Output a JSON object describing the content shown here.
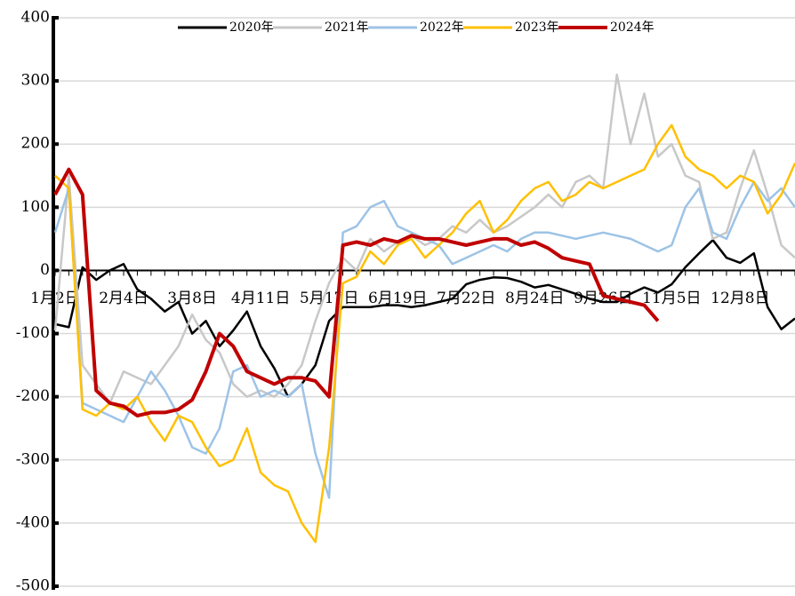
{
  "chart_data": {
    "type": "line",
    "categories": [
      "1月2日",
      null,
      null,
      null,
      null,
      "2月4日",
      null,
      null,
      null,
      null,
      "3月8日",
      null,
      null,
      null,
      null,
      "4月11日",
      null,
      null,
      null,
      null,
      "5月17日",
      null,
      null,
      null,
      null,
      "6月19日",
      null,
      null,
      null,
      null,
      "7月22日",
      null,
      null,
      null,
      null,
      "8月24日",
      null,
      null,
      null,
      null,
      "9月26日",
      null,
      null,
      null,
      null,
      "11月5日",
      null,
      null,
      null,
      null,
      "12月8日",
      null,
      null,
      null,
      null
    ],
    "series": [
      {
        "name": "2020年",
        "color": "#000000",
        "values": [
          -85,
          -90,
          5,
          -15,
          0,
          10,
          -30,
          -45,
          -65,
          -50,
          -100,
          -80,
          -120,
          -95,
          -65,
          -120,
          -155,
          -200,
          -180,
          -150,
          -80,
          -58,
          -58,
          -58,
          -55,
          -55,
          -58,
          -55,
          -50,
          -45,
          -22,
          -15,
          -11,
          -12,
          -18,
          -27,
          -23,
          -30,
          -37,
          -45,
          -50,
          -50,
          -37,
          -27,
          -35,
          -22,
          5,
          27,
          48,
          20,
          12,
          27,
          -58,
          -93,
          -76
        ]
      },
      {
        "name": "2021年",
        "color": "#c8c8c8",
        "values": [
          -95,
          150,
          -150,
          -180,
          -210,
          -160,
          -170,
          -180,
          -150,
          -120,
          -70,
          -110,
          -130,
          -180,
          -200,
          -190,
          -200,
          -180,
          -150,
          -80,
          -20,
          20,
          0,
          50,
          30,
          45,
          55,
          40,
          50,
          70,
          60,
          80,
          60,
          70,
          85,
          100,
          120,
          100,
          140,
          150,
          130,
          310,
          200,
          280,
          180,
          200,
          150,
          140,
          50,
          60,
          130,
          190,
          120,
          40,
          20
        ]
      },
      {
        "name": "2022年",
        "color": "#9dc3e6",
        "values": [
          60,
          130,
          -210,
          -220,
          -230,
          -240,
          -200,
          -160,
          -190,
          -230,
          -280,
          -290,
          -250,
          -160,
          -150,
          -200,
          -190,
          -200,
          -180,
          -290,
          -360,
          60,
          70,
          100,
          110,
          70,
          60,
          50,
          40,
          10,
          20,
          30,
          40,
          30,
          50,
          60,
          60,
          55,
          50,
          55,
          60,
          55,
          50,
          40,
          30,
          40,
          100,
          130,
          60,
          50,
          100,
          140,
          110,
          130,
          100
        ]
      },
      {
        "name": "2023年",
        "color": "#ffc000",
        "values": [
          150,
          130,
          -220,
          -230,
          -210,
          -220,
          -200,
          -240,
          -270,
          -230,
          -240,
          -280,
          -310,
          -300,
          -250,
          -320,
          -340,
          -350,
          -400,
          -430,
          -280,
          -20,
          -10,
          30,
          10,
          40,
          50,
          20,
          40,
          60,
          90,
          110,
          60,
          80,
          110,
          130,
          140,
          110,
          120,
          140,
          130,
          140,
          150,
          160,
          200,
          230,
          180,
          160,
          150,
          130,
          150,
          140,
          90,
          120,
          170
        ]
      },
      {
        "name": "2024年",
        "color": "#c00000",
        "values": [
          120,
          160,
          120,
          -190,
          -210,
          -215,
          -230,
          -225,
          -225,
          -220,
          -205,
          -160,
          -100,
          -120,
          -160,
          -170,
          -180,
          -170,
          -170,
          -175,
          -200,
          40,
          45,
          40,
          50,
          45,
          55,
          50,
          50,
          45,
          40,
          45,
          50,
          50,
          40,
          45,
          35,
          20,
          15,
          10,
          -40,
          -45,
          -50,
          -55,
          -80,
          null,
          null,
          null,
          null,
          null,
          null,
          null,
          null,
          null,
          null
        ]
      }
    ],
    "ylim": [
      -500,
      400
    ],
    "yticks": [
      -500,
      -400,
      -300,
      -200,
      -100,
      0,
      100,
      200,
      300,
      400
    ],
    "grid": true,
    "legend": "top"
  }
}
